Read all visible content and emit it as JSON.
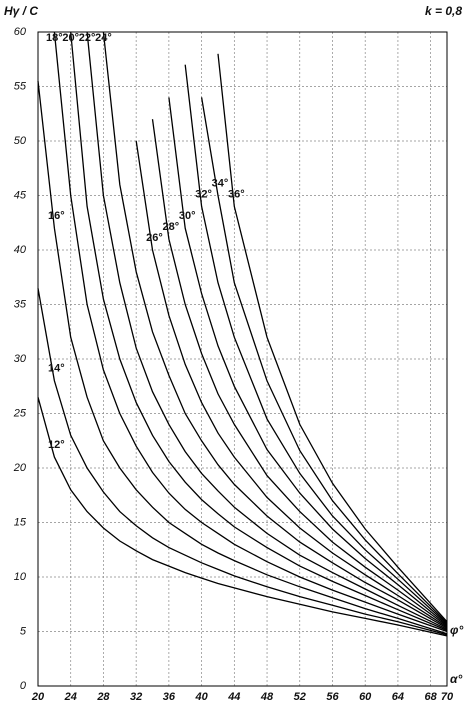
{
  "chart_data": {
    "type": "line",
    "y_label": "Hγ / C",
    "x_label": "α°",
    "legend_title": "φ°",
    "annotation": "k = 0,8",
    "x": [
      20,
      22,
      24,
      26,
      28,
      30,
      32,
      34,
      36,
      38,
      40,
      42,
      44,
      48,
      52,
      56,
      60,
      64,
      70
    ],
    "series": [
      {
        "name": "12°",
        "color": "#000",
        "values": [
          26.5,
          21,
          18,
          16,
          14.5,
          13.3,
          12.4,
          11.6,
          11,
          10.4,
          9.9,
          9.4,
          9,
          8.2,
          7.5,
          6.8,
          6.2,
          5.6,
          4.6
        ]
      },
      {
        "name": "14°",
        "color": "#000",
        "values": [
          36.5,
          28,
          23,
          20,
          17.8,
          16,
          14.7,
          13.6,
          12.7,
          12,
          11.3,
          10.7,
          10.1,
          9.1,
          8.2,
          7.4,
          6.6,
          5.9,
          4.7
        ]
      },
      {
        "name": "16°",
        "color": "#000",
        "values": [
          55.5,
          42,
          32,
          26.5,
          22.5,
          20,
          18,
          16.4,
          15,
          14,
          13,
          12.2,
          11.5,
          10.2,
          9.1,
          8.1,
          7.1,
          6.2,
          4.8
        ]
      },
      {
        "name": "18°",
        "color": "#000",
        "values": [
          null,
          60,
          45,
          35,
          29,
          25,
          22,
          19.6,
          17.7,
          16.2,
          15,
          14,
          13,
          11.4,
          10,
          8.8,
          7.7,
          6.6,
          5
        ]
      },
      {
        "name": "20°",
        "color": "#000",
        "values": [
          null,
          null,
          60,
          44,
          35.5,
          30,
          26,
          23,
          20.6,
          18.7,
          17.1,
          15.8,
          14.6,
          12.7,
          11,
          9.6,
          8.3,
          7,
          5.1
        ]
      },
      {
        "name": "22°",
        "color": "#000",
        "values": [
          null,
          null,
          null,
          60,
          45,
          37,
          31,
          27,
          24,
          21.5,
          19.5,
          17.9,
          16.4,
          14,
          12,
          10.4,
          8.9,
          7.4,
          5.2
        ]
      },
      {
        "name": "24°",
        "color": "#000",
        "values": [
          null,
          null,
          null,
          null,
          60,
          46,
          38,
          32.5,
          28.5,
          25,
          22.5,
          20.3,
          18.5,
          15.6,
          13.2,
          11.3,
          9.5,
          7.9,
          5.3
        ]
      },
      {
        "name": "26°",
        "color": "#000",
        "values": [
          null,
          null,
          null,
          null,
          null,
          null,
          50,
          40,
          34,
          29.5,
          26,
          23.2,
          21,
          17.3,
          14.5,
          12.2,
          10.2,
          8.3,
          5.4
        ]
      },
      {
        "name": "28°",
        "color": "#000",
        "values": [
          null,
          null,
          null,
          null,
          null,
          null,
          null,
          52,
          41,
          35,
          30.5,
          26.8,
          24,
          19.3,
          16,
          13.2,
          10.9,
          8.8,
          5.5
        ]
      },
      {
        "name": "30°",
        "color": "#000",
        "values": [
          null,
          null,
          null,
          null,
          null,
          null,
          null,
          null,
          54,
          42,
          36,
          31.2,
          27.5,
          21.7,
          17.7,
          14.4,
          11.7,
          9.3,
          5.6
        ]
      },
      {
        "name": "32°",
        "color": "#000",
        "values": [
          null,
          null,
          null,
          null,
          null,
          null,
          null,
          null,
          null,
          57,
          44,
          37,
          32,
          24.5,
          19.5,
          15.6,
          12.5,
          9.8,
          5.7
        ]
      },
      {
        "name": "34°",
        "color": "#000",
        "values": [
          null,
          null,
          null,
          null,
          null,
          null,
          null,
          null,
          null,
          null,
          54,
          45,
          37,
          28,
          21.6,
          17,
          13.4,
          10.3,
          5.8
        ]
      },
      {
        "name": "36°",
        "color": "#000",
        "values": [
          null,
          null,
          null,
          null,
          null,
          null,
          null,
          null,
          null,
          null,
          null,
          58,
          44,
          32,
          24,
          18.6,
          14.4,
          10.9,
          5.9
        ]
      }
    ],
    "xlim": [
      20,
      70
    ],
    "ylim": [
      0,
      60
    ],
    "xticks": [
      20,
      24,
      28,
      32,
      36,
      40,
      44,
      48,
      52,
      56,
      60,
      64,
      68,
      70
    ],
    "yticks": [
      0,
      5,
      10,
      15,
      20,
      25,
      30,
      35,
      40,
      45,
      50,
      55,
      60
    ],
    "grid": true
  }
}
